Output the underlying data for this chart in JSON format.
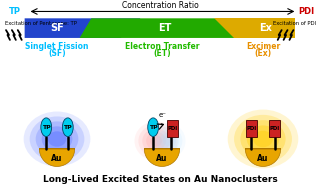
{
  "title_text": "Long-Lived Excited States on Au Nanoclusters",
  "conc_label": "Concentration Ratio",
  "tp_label": "TP",
  "pdi_label": "PDI",
  "excitation_left": "Excitation of Pentacene: TP",
  "excitation_right": "Excitation of PDI",
  "sf_label": "SF",
  "et_label": "ET",
  "ex_label": "Ex",
  "panel1_title": "Singlet Fission",
  "panel1_sub": "(SF)",
  "panel2_title": "Electron Transfer",
  "panel2_sub": "(ET)",
  "panel3_title": "Excimer",
  "panel3_sub": "(Ex)",
  "au_label": "Au",
  "tp_mol": "TP",
  "pdi_mol": "PDI",
  "eminus": "e⁻",
  "bg_color": "#ffffff",
  "cyan_color": "#00bfff",
  "green_color": "#22bb00",
  "red_color": "#cc0000",
  "orange_color": "#e89000",
  "sf_color": "#2244cc",
  "et_color": "#22aa00",
  "ex_color": "#ddaa00",
  "gold_color": "#e8a500",
  "tp_body_color": "#00ccee",
  "pdi_body_color": "#cc2222"
}
